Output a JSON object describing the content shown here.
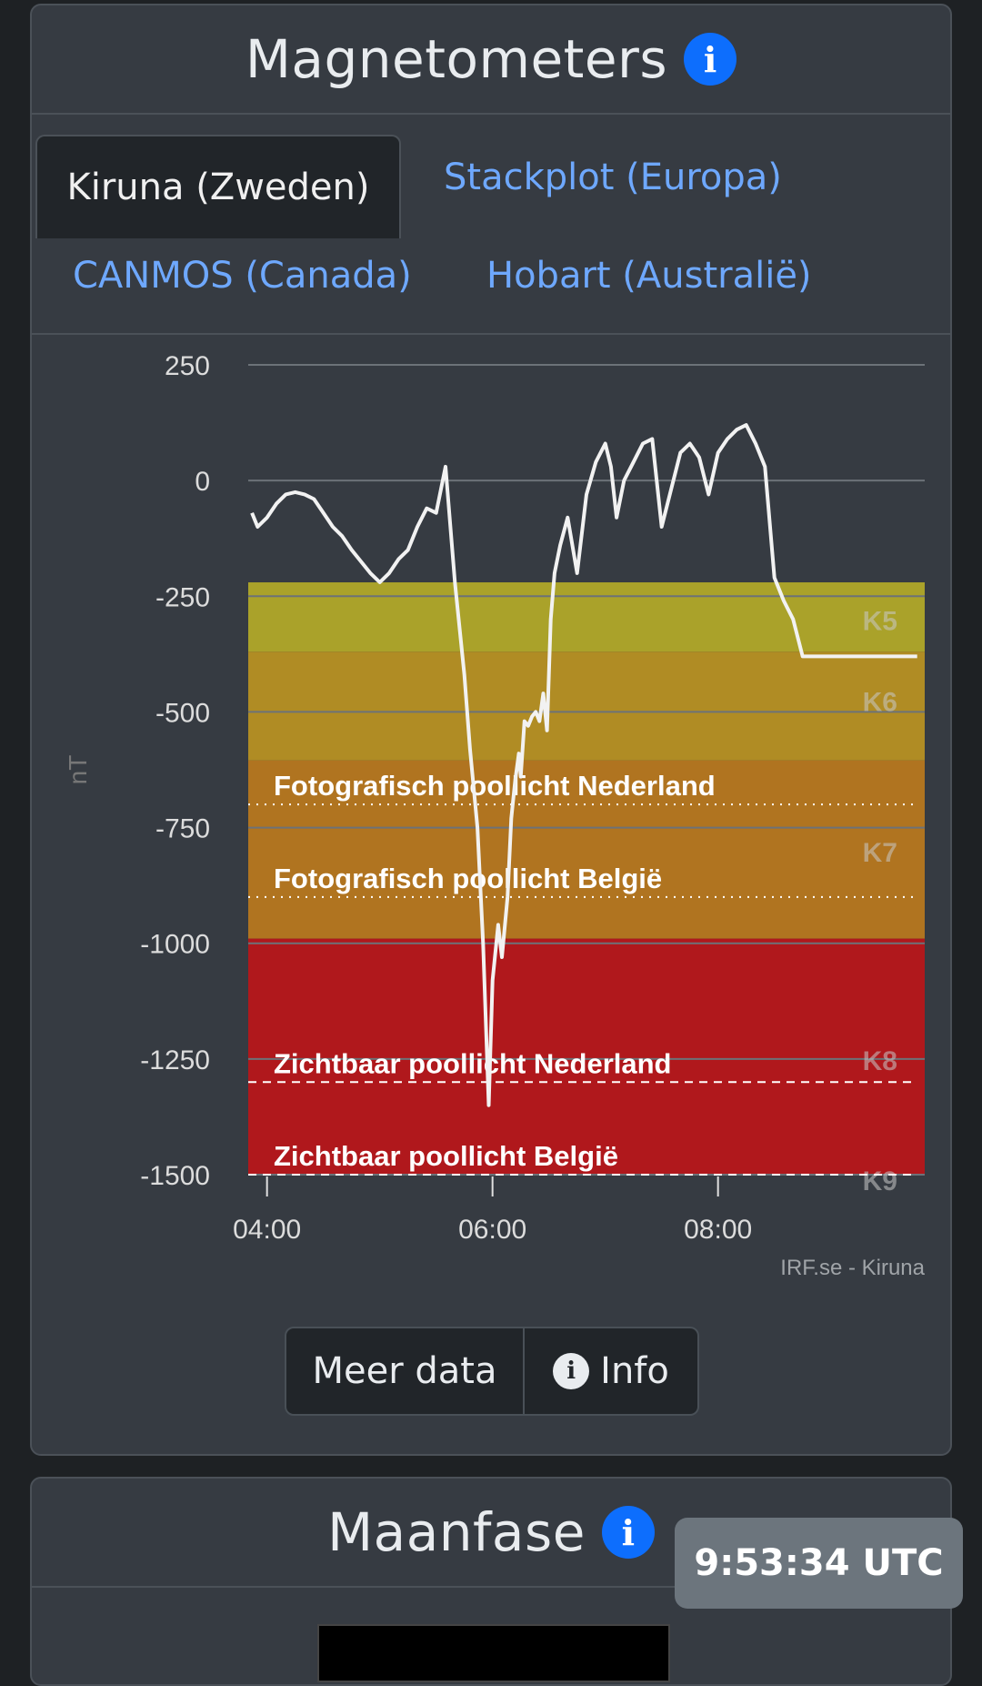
{
  "magnetometers": {
    "title": "Magnetometers",
    "tabs": [
      "Kiruna (Zweden)",
      "Stackplot (Europa)",
      "CANMOS (Canada)",
      "Hobart (Australië)"
    ],
    "active_tab": "Kiruna (Zweden)",
    "buttons": {
      "more": "Meer data",
      "info": "Info"
    }
  },
  "moon": {
    "title": "Maanfase"
  },
  "clock": {
    "utc": "9:53:34 UTC"
  },
  "colors": {
    "card_bg": "#363b42",
    "link": "#6ea8fe",
    "info_blue": "#0d6efd",
    "k5": "#aaa22a",
    "k6": "#b08c24",
    "k7": "#b07420",
    "k8": "#b0181c"
  },
  "chart_data": {
    "type": "line",
    "ylabel": "nT",
    "yticks": [
      "250",
      "0",
      "-250",
      "-500",
      "-750",
      "-1000",
      "-1250",
      "-1500"
    ],
    "xticks": [
      "04:00",
      "06:00",
      "08:00"
    ],
    "ylim": [
      -1500,
      250
    ],
    "xlim": [
      "03:50",
      "09:50"
    ],
    "grid": true,
    "source": "IRF.se - Kiruna",
    "bands": [
      {
        "label": "K5",
        "from": -220,
        "to": -370,
        "color": "#aaa22a"
      },
      {
        "label": "K6",
        "from": -370,
        "to": -605,
        "color": "#b08c24"
      },
      {
        "label": "K7",
        "from": -605,
        "to": -990,
        "color": "#b07420"
      },
      {
        "label": "K8",
        "from": -990,
        "to": -1500,
        "color": "#b0181c"
      },
      {
        "label": "K9",
        "from": -1500,
        "to": -1500,
        "color": "#b0181c"
      }
    ],
    "thresholds": [
      {
        "label": "Fotografisch poollicht Nederland",
        "value": -700,
        "style": "dotted"
      },
      {
        "label": "Fotografisch poollicht België",
        "value": -900,
        "style": "dotted"
      },
      {
        "label": "Zichtbaar poollicht Nederland",
        "value": -1300,
        "style": "dashed"
      },
      {
        "label": "Zichtbaar poollicht België",
        "value": -1500,
        "style": "dashed"
      }
    ],
    "series": [
      {
        "x": [
          "03:52",
          "03:55",
          "04:00",
          "04:05",
          "04:10",
          "04:15",
          "04:20",
          "04:25",
          "04:30",
          "04:35",
          "04:40",
          "04:45",
          "04:50",
          "04:55",
          "05:00",
          "05:05",
          "05:10",
          "05:15",
          "05:20",
          "05:25",
          "05:30",
          "05:35",
          "05:40",
          "05:45",
          "05:48",
          "05:52",
          "05:55",
          "05:58",
          "06:00",
          "06:03",
          "06:05",
          "06:08",
          "06:10",
          "06:12",
          "06:14",
          "06:15",
          "06:17",
          "06:19",
          "06:21",
          "06:23",
          "06:25",
          "06:27",
          "06:29",
          "06:31",
          "06:33",
          "06:36",
          "06:40",
          "06:45",
          "06:50",
          "06:55",
          "07:00",
          "07:03",
          "07:06",
          "07:10",
          "07:15",
          "07:20",
          "07:25",
          "07:30",
          "07:35",
          "07:40",
          "07:45",
          "07:50",
          "07:55",
          "08:00",
          "08:05",
          "08:10",
          "08:15",
          "08:20",
          "08:25",
          "08:30",
          "08:35",
          "08:40",
          "08:45",
          "08:50",
          "08:55",
          "09:00",
          "09:05",
          "09:10",
          "09:15",
          "09:18",
          "09:21",
          "09:25",
          "09:30",
          "09:35",
          "09:40",
          "09:43",
          "09:46"
        ],
        "y": [
          -70,
          -100,
          -80,
          -50,
          -30,
          -25,
          -30,
          -40,
          -70,
          -100,
          -120,
          -150,
          -175,
          -200,
          -220,
          -200,
          -170,
          -150,
          -100,
          -60,
          -70,
          30,
          -220,
          -420,
          -580,
          -750,
          -1000,
          -1350,
          -1080,
          -960,
          -1030,
          -900,
          -730,
          -650,
          -590,
          -640,
          -520,
          -530,
          -510,
          -500,
          -520,
          -460,
          -540,
          -300,
          -200,
          -140,
          -80,
          -200,
          -30,
          40,
          80,
          30,
          -80,
          0,
          40,
          80,
          90,
          -100,
          -20,
          60,
          80,
          50,
          -30,
          60,
          90,
          110,
          120,
          80,
          30,
          -210,
          -260,
          -300,
          -380,
          -380,
          -380,
          -380,
          -380,
          -380,
          -380,
          -380,
          -380,
          -380,
          -380,
          -380,
          -380,
          -380,
          -380
        ],
        "note": ""
      }
    ]
  }
}
